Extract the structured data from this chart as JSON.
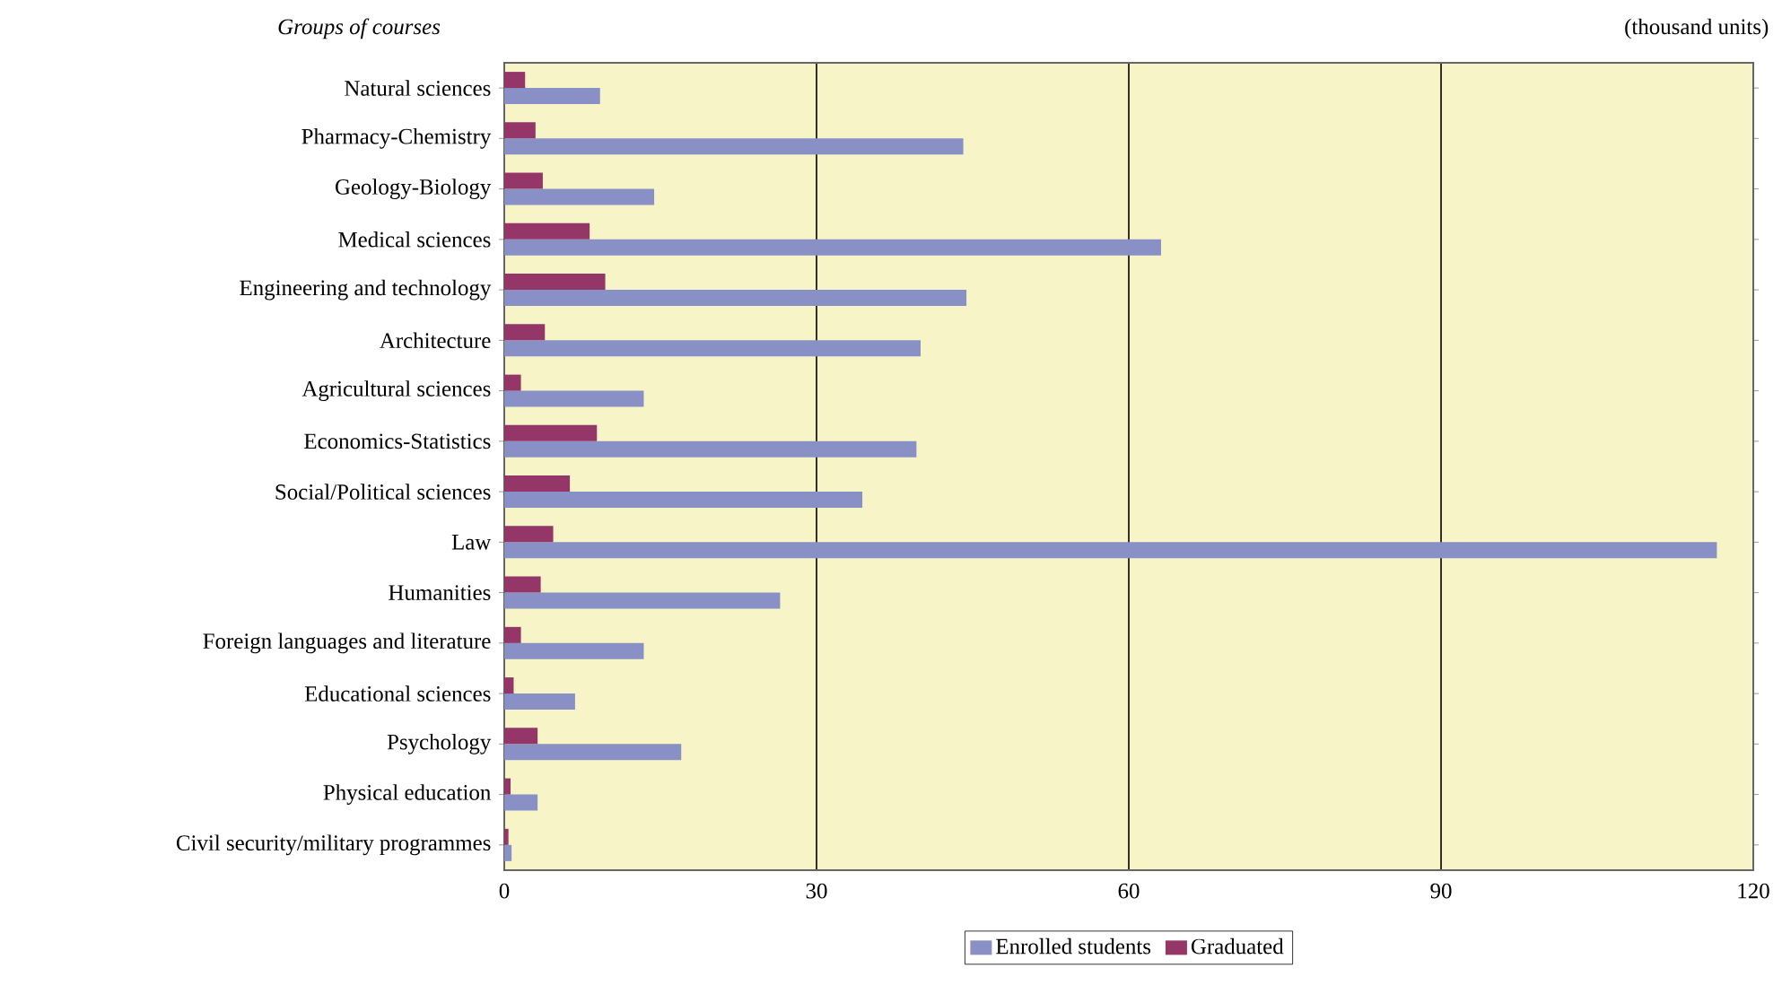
{
  "chart_data": {
    "type": "bar",
    "orientation": "horizontal",
    "ylabel": "Groups of courses",
    "annotations": [
      "(thousand units)"
    ],
    "categories": [
      "Natural sciences",
      "Pharmacy-Chemistry",
      "Geology-Biology",
      "Medical sciences",
      "Engineering and technology",
      "Architecture",
      "Agricultural sciences",
      "Economics-Statistics",
      "Social/Political sciences",
      "Law",
      "Humanities",
      "Foreign languages and literature",
      "Educational sciences",
      "Psychology",
      "Physical education",
      "Civil security/military programmes"
    ],
    "series": [
      {
        "name": "Enrolled students",
        "color": "#8890c6",
        "values": [
          9.2,
          44.1,
          14.4,
          63.1,
          44.4,
          40.0,
          13.4,
          39.6,
          34.4,
          116.5,
          26.5,
          13.4,
          6.8,
          17.0,
          3.2,
          0.7
        ]
      },
      {
        "name": "Graduated",
        "color": "#943668",
        "values": [
          2.0,
          3.0,
          3.7,
          8.2,
          9.7,
          3.9,
          1.6,
          8.9,
          6.3,
          4.7,
          3.5,
          1.6,
          0.9,
          3.2,
          0.6,
          0.4
        ]
      }
    ],
    "xlim": [
      0,
      120
    ],
    "xticks": [
      0,
      30,
      60,
      90,
      120
    ],
    "grid": "x",
    "legend": "bottom"
  }
}
